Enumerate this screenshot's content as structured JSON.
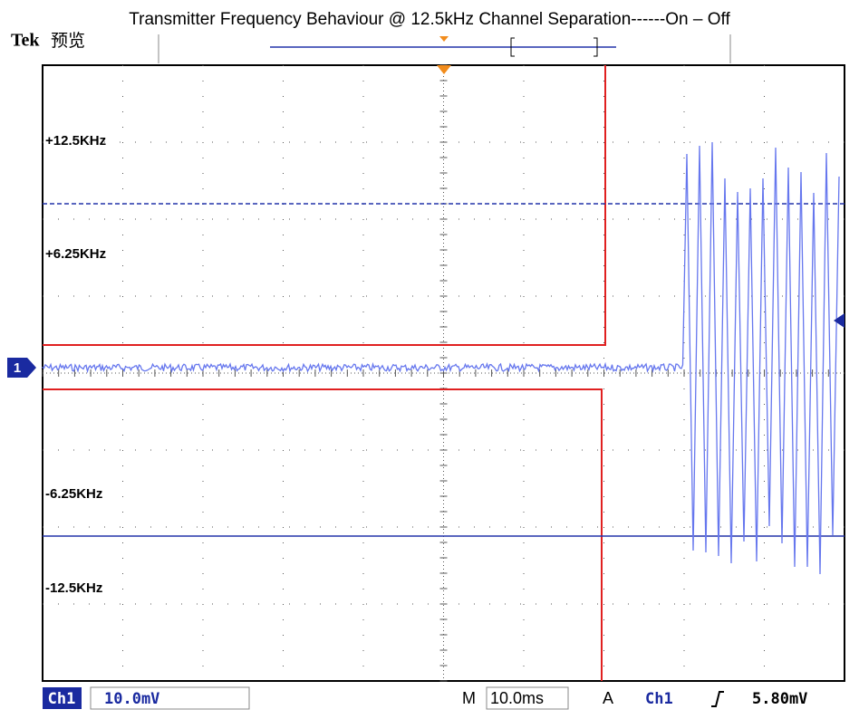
{
  "header": {
    "title": "Transmitter Frequency Behaviour @ 12.5kHz Channel Separation------On – Off",
    "brand": "Tek",
    "mode": "预览"
  },
  "screen": {
    "channel_marker": "1",
    "levels": [
      "+12.5KHz",
      "+6.25KHz",
      "-6.25KHz",
      "-12.5KHz"
    ]
  },
  "status": {
    "channel": "Ch1",
    "scale": "10.0mV",
    "time_prefix": "M",
    "time_scale": "10.0ms",
    "trigger_mode": "A",
    "trigger_channel": "Ch1",
    "trigger_level": "5.80mV"
  }
}
